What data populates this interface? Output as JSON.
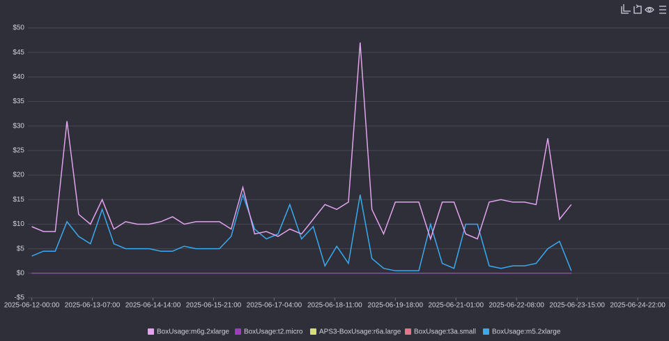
{
  "chart_data": {
    "type": "line",
    "x": [
      "2025-06-12-00:00",
      "2025-06-12-06:00",
      "2025-06-12-12:00",
      "2025-06-12-18:00",
      "2025-06-13-00:00",
      "2025-06-13-06:00",
      "2025-06-13-12:00",
      "2025-06-13-18:00",
      "2025-06-14-00:00",
      "2025-06-14-06:00",
      "2025-06-14-12:00",
      "2025-06-14-18:00",
      "2025-06-15-00:00",
      "2025-06-15-06:00",
      "2025-06-15-12:00",
      "2025-06-15-18:00",
      "2025-06-16-00:00",
      "2025-06-16-06:00",
      "2025-06-16-12:00",
      "2025-06-16-18:00",
      "2025-06-17-00:00",
      "2025-06-17-06:00",
      "2025-06-17-12:00",
      "2025-06-17-18:00",
      "2025-06-18-00:00",
      "2025-06-18-06:00",
      "2025-06-18-12:00",
      "2025-06-18-18:00",
      "2025-06-19-00:00",
      "2025-06-19-06:00",
      "2025-06-19-12:00",
      "2025-06-19-18:00",
      "2025-06-20-00:00",
      "2025-06-20-06:00",
      "2025-06-20-12:00",
      "2025-06-20-18:00",
      "2025-06-21-00:00",
      "2025-06-21-06:00",
      "2025-06-21-12:00",
      "2025-06-21-18:00",
      "2025-06-22-00:00",
      "2025-06-22-06:00",
      "2025-06-22-12:00",
      "2025-06-22-18:00",
      "2025-06-23-00:00",
      "2025-06-23-06:00",
      "2025-06-23-12:00"
    ],
    "series": [
      {
        "name": "BoxUsage:m6g.2xlarge",
        "color": "#e3a3ef",
        "values": [
          9.5,
          8.5,
          8.5,
          31,
          12,
          10,
          15,
          9,
          10.5,
          10,
          10,
          10.5,
          11.5,
          10,
          10.5,
          10.5,
          10.5,
          9,
          17.5,
          8,
          8.5,
          7.5,
          9,
          8,
          11,
          14,
          13,
          14.5,
          47,
          13,
          8,
          14.5,
          14.5,
          14.5,
          7,
          14.5,
          14.5,
          8,
          7,
          14.5,
          15,
          14.5,
          14.5,
          14,
          27.5,
          11,
          14
        ]
      },
      {
        "name": "BoxUsage:t2.micro",
        "color": "#9c3fbf",
        "values": [
          0,
          0,
          0,
          0,
          0,
          0,
          0,
          0,
          0,
          0,
          0,
          0,
          0,
          0,
          0,
          0,
          0,
          0,
          0,
          0,
          0,
          0,
          0,
          0,
          0,
          0,
          0,
          0,
          0,
          0,
          0,
          0,
          0,
          0,
          0,
          0,
          0,
          0,
          0,
          0,
          0,
          0,
          0,
          0,
          0,
          0,
          0
        ]
      },
      {
        "name": "APS3-BoxUsage:r6a.large",
        "color": "#d5df72",
        "values": [
          0,
          0,
          0,
          0,
          0,
          0,
          0,
          0,
          0,
          0,
          0,
          0,
          0,
          0,
          0,
          0,
          0,
          0,
          0,
          0,
          0,
          0,
          0,
          0,
          0,
          0,
          0,
          0,
          0,
          0,
          0,
          0,
          0,
          0,
          0,
          0,
          0,
          0,
          0,
          0,
          0,
          0,
          0,
          0,
          0,
          0,
          0
        ]
      },
      {
        "name": "BoxUsage:t3a.small",
        "color": "#e8738d",
        "values": [
          0,
          0,
          0,
          0,
          0,
          0,
          0,
          0,
          0,
          0,
          0,
          0,
          0,
          0,
          0,
          0,
          0,
          0,
          0,
          0,
          0,
          0,
          0,
          0,
          0,
          0,
          0,
          0,
          0,
          0,
          0,
          0,
          0,
          0,
          0,
          0,
          0,
          0,
          0,
          0,
          0,
          0,
          0,
          0,
          0,
          0,
          0
        ]
      },
      {
        "name": "BoxUsage:m5.2xlarge",
        "color": "#3aaaf0",
        "values": [
          3.5,
          4.5,
          4.5,
          10.5,
          7.5,
          6,
          13,
          6,
          5,
          5,
          5,
          4.5,
          4.5,
          5.5,
          5,
          5,
          5,
          7.5,
          16,
          9,
          7,
          8,
          14,
          7,
          9.5,
          1.5,
          5.5,
          2,
          16,
          3,
          1,
          0.5,
          0.5,
          0.5,
          10,
          2,
          1,
          10,
          10,
          1.5,
          1,
          1.5,
          1.5,
          2,
          5,
          6.5,
          0.5
        ]
      }
    ],
    "xlim": [
      "2025-06-11-22:00",
      "2025-06-25-14:00"
    ],
    "xticks": [
      "2025-06-12-00:00",
      "2025-06-13-07:00",
      "2025-06-14-14:00",
      "2025-06-15-21:00",
      "2025-06-17-04:00",
      "2025-06-18-11:00",
      "2025-06-19-18:00",
      "2025-06-21-01:00",
      "2025-06-22-08:00",
      "2025-06-23-15:00",
      "2025-06-24-22:00"
    ],
    "ylim": [
      -5,
      50
    ],
    "yticks": [
      {
        "value": -5,
        "label": "-$5"
      },
      {
        "value": 0,
        "label": "$0"
      },
      {
        "value": 5,
        "label": "$5"
      },
      {
        "value": 10,
        "label": "$10"
      },
      {
        "value": 15,
        "label": "$15"
      },
      {
        "value": 20,
        "label": "$20"
      },
      {
        "value": 25,
        "label": "$25"
      },
      {
        "value": 30,
        "label": "$30"
      },
      {
        "value": 35,
        "label": "$35"
      },
      {
        "value": 40,
        "label": "$40"
      },
      {
        "value": 45,
        "label": "$45"
      },
      {
        "value": 50,
        "label": "$50"
      }
    ],
    "grid": true
  }
}
